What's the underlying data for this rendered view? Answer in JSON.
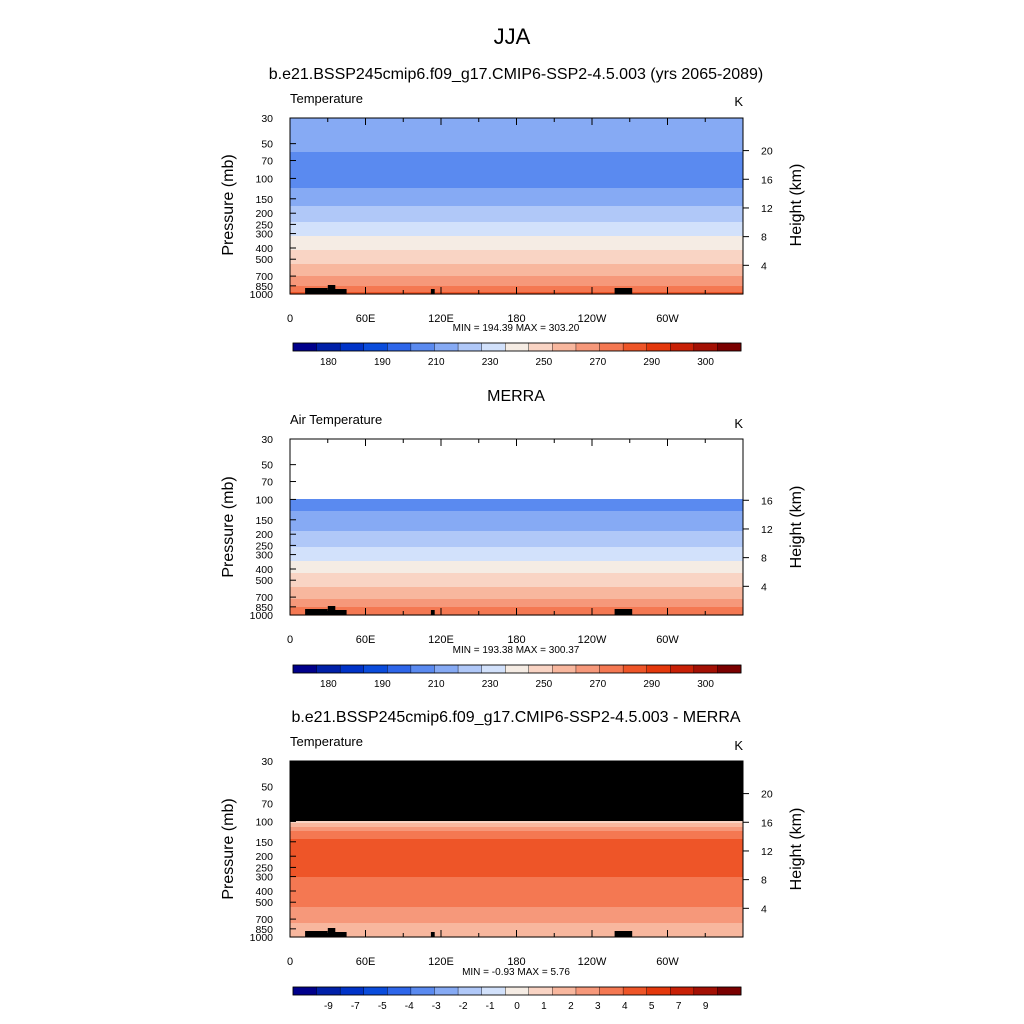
{
  "figure": {
    "main_title": "JJA"
  },
  "palettes": {
    "temperature": [
      "#00008b",
      "#0020a8",
      "#0033c8",
      "#0a4cdc",
      "#2e66ea",
      "#5a8af0",
      "#86aaf4",
      "#b0c8f8",
      "#d2e1fb",
      "#f5ece4",
      "#f9d4c4",
      "#f8b79e",
      "#f6987a",
      "#f47852",
      "#ee5528",
      "#e4380c",
      "#c82006",
      "#a31004",
      "#7a0000"
    ],
    "difference": [
      "#00008b",
      "#0020a8",
      "#0033c8",
      "#0a4cdc",
      "#2e66ea",
      "#5a8af0",
      "#86aaf4",
      "#b0c8f8",
      "#d2e1fb",
      "#f5ece4",
      "#f9d4c4",
      "#f8b79e",
      "#f6987a",
      "#f47852",
      "#ee5528",
      "#e4380c",
      "#c82006",
      "#a31004",
      "#7a0000"
    ],
    "missing": "#000000",
    "land": "#000000"
  },
  "chart_data": [
    {
      "type": "heatmap",
      "panel_title": "b.e21.BSSP245cmip6.f09_g17.CMIP6-SSP2-4.5.003 (yrs 2065-2089)",
      "left_string": "Temperature",
      "units": "K",
      "ylabel": "Pressure (mb)",
      "y2label": "Height (km)",
      "x_tick_labels": [
        "0",
        "60E",
        "120E",
        "180",
        "120W",
        "60W"
      ],
      "x_ticks_deg": [
        0,
        60,
        120,
        180,
        240,
        300
      ],
      "xlim_deg": [
        0,
        360
      ],
      "y_tick_labels": [
        "30",
        "50",
        "70",
        "100",
        "150",
        "200",
        "250",
        "300",
        "400",
        "500",
        "700",
        "850",
        "1000"
      ],
      "y_ticks_mb": [
        30,
        50,
        70,
        100,
        150,
        200,
        250,
        300,
        400,
        500,
        700,
        850,
        1000
      ],
      "ylim_mb": [
        30,
        1000
      ],
      "y_scale": "log",
      "height_tick_labels": [
        "4",
        "8",
        "12",
        "16",
        "20"
      ],
      "height_ticks_km": [
        4,
        8,
        12,
        16,
        20
      ],
      "minmax": "MIN = 194.39  MAX = 303.20",
      "min": 194.39,
      "max": 303.2,
      "colorbar_labels": [
        "180",
        "190",
        "210",
        "230",
        "250",
        "270",
        "290",
        "300"
      ],
      "levels": [
        175,
        180,
        185,
        190,
        200,
        210,
        220,
        230,
        240,
        250,
        260,
        270,
        280,
        290,
        295,
        300,
        305
      ],
      "profile_mb": [
        30,
        50,
        70,
        100,
        125,
        150,
        200,
        250,
        300,
        400,
        500,
        700,
        850,
        925,
        1000
      ],
      "profile_K": [
        219,
        212,
        208,
        207,
        211,
        217,
        224,
        231,
        238,
        249,
        257,
        269,
        281,
        286,
        293
      ],
      "missing_above_mb": null
    },
    {
      "type": "heatmap",
      "panel_title": "MERRA",
      "left_string": "Air Temperature",
      "units": "K",
      "ylabel": "Pressure (mb)",
      "y2label": "Height (km)",
      "x_tick_labels": [
        "0",
        "60E",
        "120E",
        "180",
        "120W",
        "60W"
      ],
      "x_ticks_deg": [
        0,
        60,
        120,
        180,
        240,
        300
      ],
      "xlim_deg": [
        0,
        360
      ],
      "y_tick_labels": [
        "30",
        "50",
        "70",
        "100",
        "150",
        "200",
        "250",
        "300",
        "400",
        "500",
        "700",
        "850",
        "1000"
      ],
      "y_ticks_mb": [
        30,
        50,
        70,
        100,
        150,
        200,
        250,
        300,
        400,
        500,
        700,
        850,
        1000
      ],
      "ylim_mb": [
        30,
        1000
      ],
      "y_scale": "log",
      "height_tick_labels": [
        "4",
        "8",
        "12",
        "16"
      ],
      "height_ticks_km": [
        4,
        8,
        12,
        16
      ],
      "minmax": "MIN = 193.38  MAX = 300.37",
      "min": 193.38,
      "max": 300.37,
      "colorbar_labels": [
        "180",
        "190",
        "210",
        "230",
        "250",
        "270",
        "290",
        "300"
      ],
      "levels": [
        175,
        180,
        185,
        190,
        200,
        210,
        220,
        230,
        240,
        250,
        260,
        270,
        280,
        290,
        295,
        300,
        305
      ],
      "profile_mb": [
        100,
        125,
        150,
        200,
        250,
        300,
        400,
        500,
        700,
        850,
        925,
        1000
      ],
      "profile_K": [
        205,
        210,
        215,
        222,
        229,
        236,
        247,
        255,
        267,
        279,
        284,
        290
      ],
      "missing_above_mb": 100
    },
    {
      "type": "heatmap",
      "panel_title": "b.e21.BSSP245cmip6.f09_g17.CMIP6-SSP2-4.5.003 - MERRA",
      "left_string": "Temperature",
      "units": "K",
      "ylabel": "Pressure (mb)",
      "y2label": "Height (km)",
      "x_tick_labels": [
        "0",
        "60E",
        "120E",
        "180",
        "120W",
        "60W"
      ],
      "x_ticks_deg": [
        0,
        60,
        120,
        180,
        240,
        300
      ],
      "xlim_deg": [
        0,
        360
      ],
      "y_tick_labels": [
        "30",
        "50",
        "70",
        "100",
        "150",
        "200",
        "250",
        "300",
        "400",
        "500",
        "700",
        "850",
        "1000"
      ],
      "y_ticks_mb": [
        30,
        50,
        70,
        100,
        150,
        200,
        250,
        300,
        400,
        500,
        700,
        850,
        1000
      ],
      "ylim_mb": [
        30,
        1000
      ],
      "y_scale": "log",
      "height_tick_labels": [
        "4",
        "8",
        "12",
        "16",
        "20"
      ],
      "height_ticks_km": [
        4,
        8,
        12,
        16,
        20
      ],
      "minmax": "MIN =  -0.93  MAX =   5.76",
      "min": -0.93,
      "max": 5.76,
      "colorbar_labels": [
        "-9",
        "-7",
        "-5",
        "-4",
        "-3",
        "-2",
        "-1",
        "0",
        "1",
        "2",
        "3",
        "4",
        "5",
        "7",
        "9"
      ],
      "levels": [
        -10,
        -9,
        -8,
        -7,
        -5,
        -4,
        -3,
        -2,
        -1,
        0,
        1,
        2,
        3,
        4,
        5,
        7,
        8,
        9
      ],
      "profile_mb": [
        100,
        110,
        125,
        150,
        200,
        250,
        300,
        400,
        500,
        700,
        850,
        925,
        1000
      ],
      "profile_K": [
        0.6,
        1.8,
        3.2,
        4.3,
        4.4,
        4.2,
        4.0,
        3.4,
        3.1,
        2.6,
        1.3,
        0.9,
        1.8
      ],
      "missing_above_mb": 100
    }
  ]
}
